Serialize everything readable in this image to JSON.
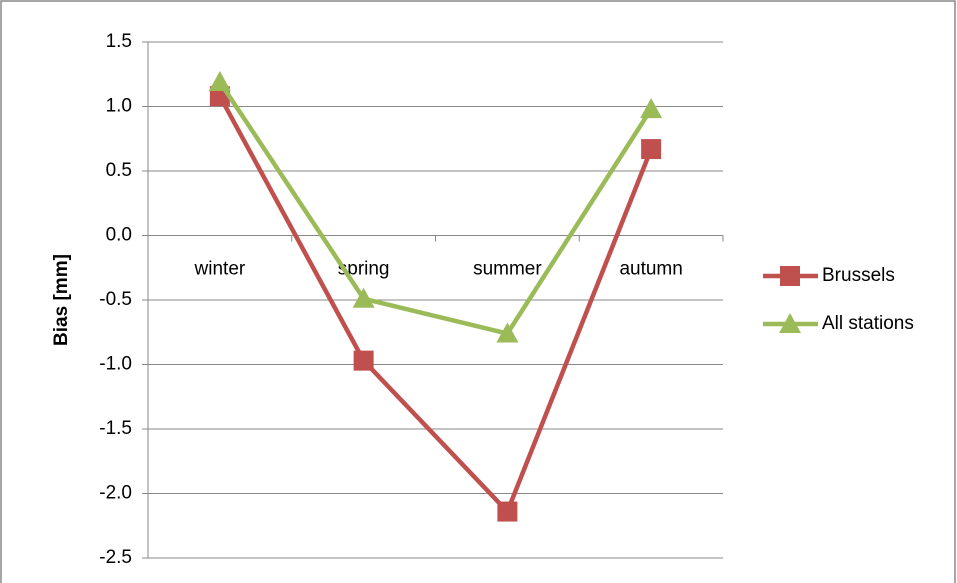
{
  "chart_data": {
    "type": "line",
    "y_label": "Bias [mm]",
    "categories": [
      "winter",
      "spring",
      "summer",
      "autumn"
    ],
    "series": [
      {
        "name": "Brussels",
        "color": "#c0504d",
        "marker": "square",
        "values": [
          1.08,
          -0.97,
          -2.14,
          0.67
        ]
      },
      {
        "name": "All stations",
        "color": "#9bbb59",
        "marker": "triangle",
        "values": [
          1.19,
          -0.49,
          -0.76,
          0.98
        ]
      }
    ],
    "ylim": [
      -2.5,
      1.5
    ],
    "yticks": [
      -2.5,
      {
        "value": -2,
        "label": "-2.0"
      },
      -1.5,
      {
        "value": -1,
        "label": "-1.0"
      },
      -0.5,
      {
        "value": 0,
        "label": "0.0"
      },
      0.5,
      {
        "value": 1,
        "label": "1.0"
      },
      1.5
    ],
    "grid": true,
    "legend": "right"
  }
}
